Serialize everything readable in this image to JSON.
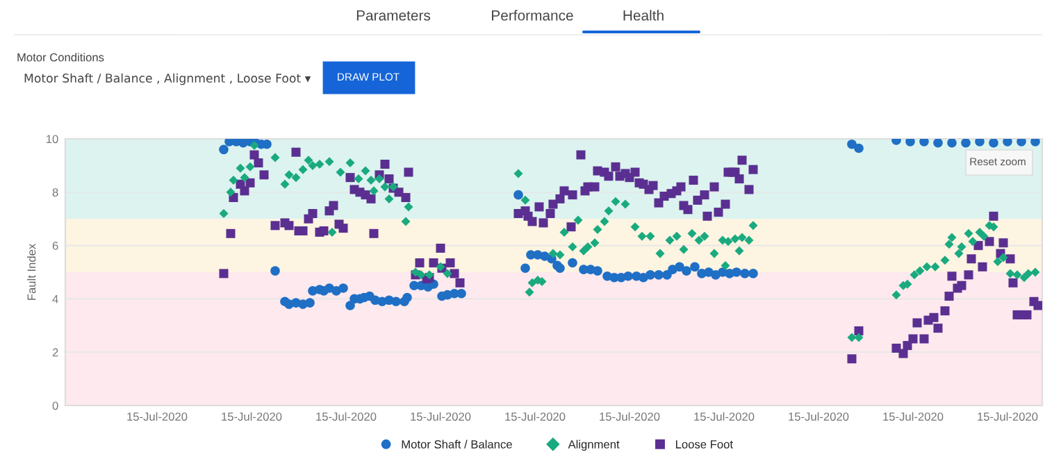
{
  "chart_data": {
    "type": "scatter",
    "ylabel": "Fault Index",
    "xlim": [
      "2020-07-15T00:02",
      "2020-07-15T11:45"
    ],
    "ylim": [
      0,
      10
    ],
    "xticks": [
      {
        "value": "2020-07-15T01:08",
        "label": "15-Jul-2020"
      },
      {
        "value": "2020-07-15T02:16",
        "label": "15-Jul-2020"
      },
      {
        "value": "2020-07-15T03:24",
        "label": "15-Jul-2020"
      },
      {
        "value": "2020-07-15T04:32",
        "label": "15-Jul-2020"
      },
      {
        "value": "2020-07-15T05:40",
        "label": "15-Jul-2020"
      },
      {
        "value": "2020-07-15T06:48",
        "label": "15-Jul-2020"
      },
      {
        "value": "2020-07-15T07:56",
        "label": "15-Jul-2020"
      },
      {
        "value": "2020-07-15T09:04",
        "label": "15-Jul-2020"
      },
      {
        "value": "2020-07-15T10:12",
        "label": "15-Jul-2020"
      },
      {
        "value": "2020-07-15T11:20",
        "label": "15-Jul-2020"
      }
    ],
    "yticks": [
      0,
      2,
      4,
      6,
      8,
      10
    ],
    "grid": "y",
    "legend": "bottom",
    "bands": [
      {
        "axis": "y",
        "from": 7,
        "to": 10,
        "label": null,
        "color": "#dcf3ef"
      },
      {
        "axis": "y",
        "from": 5,
        "to": 7,
        "label": null,
        "color": "#fdf4e1"
      },
      {
        "axis": "y",
        "from": 0,
        "to": 5,
        "label": null,
        "color": "#fde9ee"
      }
    ],
    "annotations": [
      "Parameters",
      "Performance",
      "Health",
      "Motor Conditions",
      "Motor Shaft / Balance , Alignment , Loose Foot ▾",
      "DRAW PLOT",
      "Reset zoom"
    ],
    "series": [
      {
        "name": "Motor Shaft / Balance",
        "color": "#1f6fc5",
        "marker": "circle",
        "x": [
          "2020-07-15T01:56",
          "2020-07-15T02:00",
          "2020-07-15T02:05",
          "2020-07-15T02:10",
          "2020-07-15T02:15",
          "2020-07-15T02:19",
          "2020-07-15T02:23",
          "2020-07-15T02:27",
          "2020-07-15T02:33",
          "2020-07-15T02:40",
          "2020-07-15T02:43",
          "2020-07-15T02:48",
          "2020-07-15T02:53",
          "2020-07-15T02:58",
          "2020-07-15T03:00",
          "2020-07-15T03:05",
          "2020-07-15T03:08",
          "2020-07-15T03:12",
          "2020-07-15T03:17",
          "2020-07-15T03:22",
          "2020-07-15T03:27",
          "2020-07-15T03:30",
          "2020-07-15T03:34",
          "2020-07-15T03:37",
          "2020-07-15T03:41",
          "2020-07-15T03:45",
          "2020-07-15T03:50",
          "2020-07-15T03:55",
          "2020-07-15T04:00",
          "2020-07-15T04:06",
          "2020-07-15T04:08",
          "2020-07-15T04:13",
          "2020-07-15T04:18",
          "2020-07-15T04:23",
          "2020-07-15T04:27",
          "2020-07-15T04:33",
          "2020-07-15T04:37",
          "2020-07-15T04:42",
          "2020-07-15T04:47",
          "2020-07-15T05:28",
          "2020-07-15T05:33",
          "2020-07-15T05:37",
          "2020-07-15T05:42",
          "2020-07-15T05:47",
          "2020-07-15T05:52",
          "2020-07-15T05:56",
          "2020-07-15T05:58",
          "2020-07-15T06:07",
          "2020-07-15T06:15",
          "2020-07-15T06:20",
          "2020-07-15T06:25",
          "2020-07-15T06:32",
          "2020-07-15T06:37",
          "2020-07-15T06:42",
          "2020-07-15T06:47",
          "2020-07-15T06:53",
          "2020-07-15T06:58",
          "2020-07-15T07:03",
          "2020-07-15T07:09",
          "2020-07-15T07:15",
          "2020-07-15T07:19",
          "2020-07-15T07:24",
          "2020-07-15T07:29",
          "2020-07-15T07:35",
          "2020-07-15T07:40",
          "2020-07-15T07:45",
          "2020-07-15T07:50",
          "2020-07-15T07:55",
          "2020-07-15T08:00",
          "2020-07-15T08:05",
          "2020-07-15T08:11",
          "2020-07-15T08:17",
          "2020-07-15T09:28",
          "2020-07-15T09:33",
          "2020-07-15T10:00",
          "2020-07-15T10:10",
          "2020-07-15T10:20",
          "2020-07-15T10:30",
          "2020-07-15T10:40",
          "2020-07-15T10:50",
          "2020-07-15T11:00",
          "2020-07-15T11:10",
          "2020-07-15T11:20",
          "2020-07-15T11:30",
          "2020-07-15T11:40"
        ],
        "values": [
          9.6,
          9.9,
          9.9,
          9.85,
          9.9,
          9.85,
          9.8,
          9.8,
          5.05,
          3.9,
          3.8,
          3.85,
          3.8,
          3.85,
          4.3,
          4.35,
          4.3,
          4.4,
          4.3,
          4.4,
          3.75,
          4.0,
          4.0,
          4.05,
          4.1,
          3.95,
          3.9,
          3.95,
          3.9,
          3.9,
          4.05,
          4.5,
          4.5,
          4.45,
          4.55,
          4.1,
          4.15,
          4.2,
          4.2,
          7.9,
          5.15,
          5.65,
          5.65,
          5.6,
          5.5,
          5.25,
          5.15,
          5.35,
          5.1,
          5.1,
          5.05,
          4.85,
          4.8,
          4.8,
          4.85,
          4.85,
          4.8,
          4.9,
          4.9,
          4.9,
          5.1,
          5.2,
          5.05,
          5.2,
          4.95,
          5.0,
          4.9,
          5.0,
          4.95,
          5.0,
          4.95,
          4.95,
          9.8,
          9.65,
          9.95,
          9.9,
          9.9,
          9.85,
          9.85,
          9.85,
          9.9,
          9.85,
          9.9,
          9.9,
          9.9
        ]
      },
      {
        "name": "Alignment",
        "color": "#1aaa7f",
        "marker": "diamond",
        "x": [
          "2020-07-15T01:56",
          "2020-07-15T02:01",
          "2020-07-15T02:03",
          "2020-07-15T02:08",
          "2020-07-15T02:11",
          "2020-07-15T02:15",
          "2020-07-15T02:18",
          "2020-07-15T02:33",
          "2020-07-15T02:40",
          "2020-07-15T02:43",
          "2020-07-15T02:48",
          "2020-07-15T02:53",
          "2020-07-15T02:57",
          "2020-07-15T03:00",
          "2020-07-15T03:05",
          "2020-07-15T03:12",
          "2020-07-15T03:14",
          "2020-07-15T03:20",
          "2020-07-15T03:27",
          "2020-07-15T03:33",
          "2020-07-15T03:38",
          "2020-07-15T03:42",
          "2020-07-15T03:44",
          "2020-07-15T03:48",
          "2020-07-15T03:52",
          "2020-07-15T03:55",
          "2020-07-15T03:58",
          "2020-07-15T04:07",
          "2020-07-15T04:09",
          "2020-07-15T04:14",
          "2020-07-15T04:18",
          "2020-07-15T04:24",
          "2020-07-15T04:32",
          "2020-07-15T04:37",
          "2020-07-15T05:28",
          "2020-07-15T05:33",
          "2020-07-15T05:36",
          "2020-07-15T05:38",
          "2020-07-15T05:42",
          "2020-07-15T05:45",
          "2020-07-15T05:53",
          "2020-07-15T05:58",
          "2020-07-15T06:01",
          "2020-07-15T06:07",
          "2020-07-15T06:11",
          "2020-07-15T06:15",
          "2020-07-15T06:18",
          "2020-07-15T06:23",
          "2020-07-15T06:25",
          "2020-07-15T06:30",
          "2020-07-15T06:33",
          "2020-07-15T06:38",
          "2020-07-15T06:45",
          "2020-07-15T06:52",
          "2020-07-15T06:57",
          "2020-07-15T07:03",
          "2020-07-15T07:10",
          "2020-07-15T07:17",
          "2020-07-15T07:22",
          "2020-07-15T07:27",
          "2020-07-15T07:33",
          "2020-07-15T07:38",
          "2020-07-15T07:42",
          "2020-07-15T07:49",
          "2020-07-15T07:55",
          "2020-07-15T07:57",
          "2020-07-15T07:59",
          "2020-07-15T08:04",
          "2020-07-15T08:07",
          "2020-07-15T08:09",
          "2020-07-15T08:14",
          "2020-07-15T08:17",
          "2020-07-15T09:28",
          "2020-07-15T09:33",
          "2020-07-15T10:00",
          "2020-07-15T10:05",
          "2020-07-15T10:08",
          "2020-07-15T10:13",
          "2020-07-15T10:17",
          "2020-07-15T10:22",
          "2020-07-15T10:28",
          "2020-07-15T10:35",
          "2020-07-15T10:38",
          "2020-07-15T10:40",
          "2020-07-15T10:45",
          "2020-07-15T10:47",
          "2020-07-15T10:52",
          "2020-07-15T10:55",
          "2020-07-15T11:00",
          "2020-07-15T11:03",
          "2020-07-15T11:07",
          "2020-07-15T11:10",
          "2020-07-15T11:13",
          "2020-07-15T11:17",
          "2020-07-15T11:22",
          "2020-07-15T11:27",
          "2020-07-15T11:32",
          "2020-07-15T11:35",
          "2020-07-15T11:40"
        ],
        "values": [
          7.2,
          8.0,
          8.45,
          8.9,
          8.55,
          8.95,
          9.75,
          9.3,
          8.3,
          8.65,
          8.55,
          8.85,
          9.2,
          9.0,
          9.05,
          9.15,
          6.5,
          8.75,
          9.1,
          8.5,
          8.8,
          8.45,
          8.05,
          8.5,
          8.2,
          7.75,
          8.2,
          6.9,
          7.45,
          5.0,
          4.9,
          4.9,
          5.2,
          4.95,
          8.7,
          7.7,
          4.25,
          4.6,
          4.7,
          4.65,
          5.7,
          5.65,
          6.5,
          5.95,
          6.95,
          5.8,
          5.95,
          6.1,
          6.6,
          6.9,
          7.3,
          7.65,
          7.55,
          6.7,
          6.35,
          6.35,
          5.7,
          6.2,
          6.35,
          5.85,
          6.45,
          6.2,
          6.35,
          5.7,
          6.2,
          5.25,
          6.15,
          6.25,
          5.8,
          6.3,
          6.2,
          6.75,
          2.55,
          2.55,
          4.15,
          4.5,
          4.55,
          4.9,
          5.05,
          5.2,
          5.2,
          5.45,
          6.05,
          6.3,
          5.7,
          5.95,
          6.45,
          6.15,
          6.5,
          6.35,
          6.75,
          6.7,
          5.4,
          5.55,
          4.95,
          4.9,
          4.8,
          4.95,
          5.0
        ]
      },
      {
        "name": "Loose Foot",
        "color": "#5b2f91",
        "marker": "square",
        "x": [
          "2020-07-15T01:56",
          "2020-07-15T02:01",
          "2020-07-15T02:03",
          "2020-07-15T02:08",
          "2020-07-15T02:11",
          "2020-07-15T02:15",
          "2020-07-15T02:18",
          "2020-07-15T02:21",
          "2020-07-15T02:25",
          "2020-07-15T02:33",
          "2020-07-15T02:40",
          "2020-07-15T02:43",
          "2020-07-15T02:48",
          "2020-07-15T02:50",
          "2020-07-15T02:53",
          "2020-07-15T02:57",
          "2020-07-15T03:00",
          "2020-07-15T03:05",
          "2020-07-15T03:08",
          "2020-07-15T03:12",
          "2020-07-15T03:15",
          "2020-07-15T03:19",
          "2020-07-15T03:22",
          "2020-07-15T03:27",
          "2020-07-15T03:30",
          "2020-07-15T03:34",
          "2020-07-15T03:38",
          "2020-07-15T03:42",
          "2020-07-15T03:44",
          "2020-07-15T03:48",
          "2020-07-15T03:52",
          "2020-07-15T03:55",
          "2020-07-15T03:58",
          "2020-07-15T04:02",
          "2020-07-15T04:07",
          "2020-07-15T04:09",
          "2020-07-15T04:14",
          "2020-07-15T04:17",
          "2020-07-15T04:22",
          "2020-07-15T04:24",
          "2020-07-15T04:27",
          "2020-07-15T04:32",
          "2020-07-15T04:33",
          "2020-07-15T04:39",
          "2020-07-15T04:42",
          "2020-07-15T04:46",
          "2020-07-15T05:28",
          "2020-07-15T05:33",
          "2020-07-15T05:35",
          "2020-07-15T05:38",
          "2020-07-15T05:43",
          "2020-07-15T05:46",
          "2020-07-15T05:51",
          "2020-07-15T05:53",
          "2020-07-15T05:58",
          "2020-07-15T06:01",
          "2020-07-15T06:06",
          "2020-07-15T06:07",
          "2020-07-15T06:13",
          "2020-07-15T06:16",
          "2020-07-15T06:18",
          "2020-07-15T06:23",
          "2020-07-15T06:25",
          "2020-07-15T06:30",
          "2020-07-15T06:33",
          "2020-07-15T06:38",
          "2020-07-15T06:41",
          "2020-07-15T06:45",
          "2020-07-15T06:48",
          "2020-07-15T06:52",
          "2020-07-15T06:55",
          "2020-07-15T06:58",
          "2020-07-15T07:02",
          "2020-07-15T07:05",
          "2020-07-15T07:09",
          "2020-07-15T07:13",
          "2020-07-15T07:18",
          "2020-07-15T07:22",
          "2020-07-15T07:25",
          "2020-07-15T07:27",
          "2020-07-15T07:30",
          "2020-07-15T07:34",
          "2020-07-15T07:37",
          "2020-07-15T07:42",
          "2020-07-15T07:44",
          "2020-07-15T07:49",
          "2020-07-15T07:52",
          "2020-07-15T07:57",
          "2020-07-15T07:59",
          "2020-07-15T08:02",
          "2020-07-15T08:04",
          "2020-07-15T08:07",
          "2020-07-15T08:09",
          "2020-07-15T08:14",
          "2020-07-15T08:17",
          "2020-07-15T09:28",
          "2020-07-15T09:33",
          "2020-07-15T10:00",
          "2020-07-15T10:05",
          "2020-07-15T10:08",
          "2020-07-15T10:12",
          "2020-07-15T10:15",
          "2020-07-15T10:20",
          "2020-07-15T10:23",
          "2020-07-15T10:27",
          "2020-07-15T10:30",
          "2020-07-15T10:35",
          "2020-07-15T10:38",
          "2020-07-15T10:40",
          "2020-07-15T10:44",
          "2020-07-15T10:47",
          "2020-07-15T10:52",
          "2020-07-15T10:54",
          "2020-07-15T10:59",
          "2020-07-15T11:02",
          "2020-07-15T11:07",
          "2020-07-15T11:10",
          "2020-07-15T11:15",
          "2020-07-15T11:17",
          "2020-07-15T11:22",
          "2020-07-15T11:24",
          "2020-07-15T11:27",
          "2020-07-15T11:31",
          "2020-07-15T11:34",
          "2020-07-15T11:39",
          "2020-07-15T11:42"
        ],
        "values": [
          4.95,
          6.45,
          7.8,
          8.3,
          8.05,
          8.35,
          9.4,
          9.1,
          8.65,
          6.75,
          6.85,
          6.75,
          9.5,
          6.55,
          6.55,
          7.0,
          7.2,
          6.5,
          6.55,
          7.3,
          7.5,
          6.8,
          6.65,
          8.55,
          8.1,
          8.0,
          7.9,
          7.75,
          6.45,
          8.65,
          9.05,
          8.5,
          8.15,
          8.0,
          7.8,
          8.75,
          4.9,
          5.35,
          4.75,
          4.8,
          5.35,
          5.9,
          5.15,
          5.35,
          4.95,
          4.6,
          7.2,
          7.3,
          7.1,
          6.9,
          7.45,
          6.85,
          7.2,
          7.55,
          7.75,
          8.05,
          6.7,
          7.9,
          9.4,
          8.05,
          8.2,
          8.2,
          8.8,
          8.75,
          8.6,
          8.95,
          8.6,
          8.7,
          8.55,
          8.75,
          8.35,
          8.3,
          8.1,
          8.25,
          7.6,
          7.85,
          7.95,
          8.05,
          8.2,
          7.5,
          7.35,
          8.45,
          7.7,
          7.9,
          7.1,
          8.2,
          7.25,
          7.55,
          8.75,
          8.75,
          8.75,
          8.5,
          9.2,
          8.1,
          8.85,
          1.75,
          2.8,
          2.15,
          1.95,
          2.25,
          2.5,
          3.1,
          2.5,
          3.2,
          3.3,
          2.9,
          3.55,
          4.1,
          4.85,
          4.4,
          4.5,
          4.9,
          5.5,
          6.0,
          5.2,
          6.15,
          7.1,
          5.7,
          6.1,
          5.5,
          4.6,
          3.4,
          3.4,
          3.4,
          3.9,
          3.75
        ]
      }
    ]
  }
}
